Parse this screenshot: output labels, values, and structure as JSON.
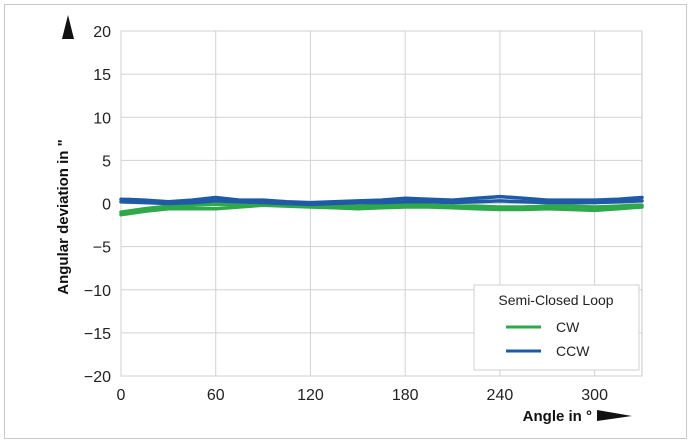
{
  "chart_data": {
    "type": "line",
    "title": "",
    "xlabel": "Angle in °",
    "ylabel": "Angular deviation in \"",
    "xlim": [
      0,
      330
    ],
    "ylim": [
      -20,
      20
    ],
    "xticks": [
      0,
      60,
      120,
      180,
      240,
      300
    ],
    "yticks": [
      20,
      15,
      10,
      5,
      0,
      -5,
      -10,
      -15,
      -20
    ],
    "grid": true,
    "legend": {
      "title": "Semi-Closed Loop",
      "placement": "bottom-right"
    },
    "series": [
      {
        "name": "CW",
        "color": "#2ea84a",
        "traces": [
          {
            "x": [
              0,
              15,
              30,
              45,
              60,
              75,
              90,
              105,
              120,
              135,
              150,
              165,
              180,
              195,
              210,
              225,
              240,
              255,
              270,
              285,
              300,
              315,
              330
            ],
            "y": [
              -1.3,
              -0.9,
              -0.6,
              -0.6,
              -0.6,
              -0.4,
              -0.2,
              -0.3,
              -0.4,
              -0.5,
              -0.6,
              -0.5,
              -0.4,
              -0.4,
              -0.5,
              -0.6,
              -0.7,
              -0.7,
              -0.6,
              -0.7,
              -0.8,
              -0.6,
              -0.4
            ]
          },
          {
            "x": [
              0,
              15,
              30,
              45,
              60,
              75,
              90,
              105,
              120,
              135,
              150,
              165,
              180,
              195,
              210,
              225,
              240,
              255,
              270,
              285,
              300,
              315,
              330
            ],
            "y": [
              -1.0,
              -0.6,
              -0.3,
              -0.2,
              -0.1,
              -0.1,
              0.0,
              -0.1,
              -0.2,
              -0.3,
              -0.3,
              -0.2,
              -0.2,
              -0.2,
              -0.3,
              -0.3,
              -0.4,
              -0.4,
              -0.3,
              -0.3,
              -0.4,
              -0.3,
              -0.2
            ]
          }
        ]
      },
      {
        "name": "CCW",
        "color": "#1f5aa6",
        "traces": [
          {
            "x": [
              0,
              15,
              30,
              45,
              60,
              75,
              90,
              105,
              120,
              135,
              150,
              165,
              180,
              195,
              210,
              225,
              240,
              255,
              270,
              285,
              300,
              315,
              330
            ],
            "y": [
              0.5,
              0.4,
              0.2,
              0.4,
              0.7,
              0.4,
              0.4,
              0.2,
              0.1,
              0.2,
              0.3,
              0.4,
              0.6,
              0.5,
              0.4,
              0.6,
              0.8,
              0.6,
              0.4,
              0.4,
              0.4,
              0.5,
              0.7
            ]
          },
          {
            "x": [
              0,
              15,
              30,
              45,
              60,
              75,
              90,
              105,
              120,
              135,
              150,
              165,
              180,
              195,
              210,
              225,
              240,
              255,
              270,
              285,
              300,
              315,
              330
            ],
            "y": [
              0.2,
              0.1,
              0.0,
              0.1,
              0.3,
              0.2,
              0.1,
              0.0,
              -0.1,
              0.0,
              0.1,
              0.1,
              0.2,
              0.2,
              0.1,
              0.2,
              0.3,
              0.2,
              0.1,
              0.1,
              0.1,
              0.2,
              0.3
            ]
          }
        ]
      }
    ]
  }
}
